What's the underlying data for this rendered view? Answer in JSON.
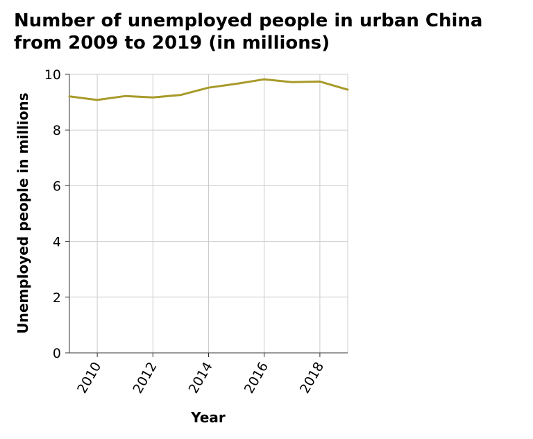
{
  "chart_data": {
    "type": "line",
    "title_lines": [
      "Number of unemployed people in urban China",
      "from 2009 to 2019 (in millions)"
    ],
    "xlabel": "Year",
    "ylabel": "Unemployed people in millions",
    "xlim": [
      2009,
      2019
    ],
    "ylim": [
      0,
      10
    ],
    "x_ticks": [
      2010,
      2012,
      2014,
      2016,
      2018
    ],
    "y_ticks": [
      0,
      2,
      4,
      6,
      8,
      10
    ],
    "grid": true,
    "series": [
      {
        "color": "#a89a2a",
        "x": [
          2009,
          2010,
          2011,
          2012,
          2013,
          2014,
          2015,
          2016,
          2017,
          2018,
          2019
        ],
        "y": [
          9.21,
          9.08,
          9.22,
          9.17,
          9.26,
          9.52,
          9.66,
          9.82,
          9.72,
          9.74,
          9.45
        ]
      }
    ]
  }
}
